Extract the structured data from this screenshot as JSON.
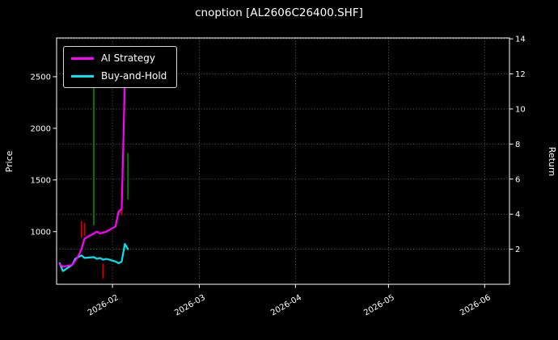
{
  "title": "cnoption [AL2606C26400.SHF]",
  "colors": {
    "background": "#000000",
    "text": "#ffffff",
    "spine": "#ffffff",
    "grid": "#ffffff"
  },
  "chart_data": {
    "type": "line",
    "title": "cnoption [AL2606C26400.SHF]",
    "background": "black",
    "grid": true,
    "legend_position": "upper left",
    "xlabel": "",
    "ylabel_left": "Price",
    "ylabel_right": "Return",
    "x_range": [
      "2026-01-14",
      "2026-06-09"
    ],
    "left_ylim": [
      490,
      2875
    ],
    "right_ylim": [
      0,
      14.05
    ],
    "left_ticks": [
      1000,
      1500,
      2000,
      2500
    ],
    "right_ticks": [
      2,
      4,
      6,
      8,
      10,
      12,
      14
    ],
    "x_tick_dates": [
      "2026-02-01",
      "2026-03-01",
      "2026-04-01",
      "2026-05-01",
      "2026-06-01"
    ],
    "x_tick_labels": [
      "2026-02",
      "2026-03",
      "2026-04",
      "2026-05",
      "2026-06"
    ],
    "x": [
      "2026-01-15",
      "2026-01-16",
      "2026-01-19",
      "2026-01-20",
      "2026-01-21",
      "2026-01-22",
      "2026-01-23",
      "2026-01-26",
      "2026-01-27",
      "2026-01-28",
      "2026-01-29",
      "2026-01-30",
      "2026-02-02",
      "2026-02-03",
      "2026-02-04",
      "2026-02-05",
      "2026-02-06"
    ],
    "series": [
      {
        "name": "AI Strategy",
        "axis": "right",
        "color": "#ff00ff",
        "values": [
          1.15,
          1.0,
          1.1,
          1.35,
          1.6,
          2.0,
          2.6,
          2.9,
          3.0,
          2.9,
          2.95,
          3.0,
          3.3,
          4.15,
          4.3,
          11.7,
          11.4
        ]
      },
      {
        "name": "Buy-and-Hold",
        "axis": "right",
        "color": "#00e5ee",
        "values": [
          1.2,
          0.75,
          1.1,
          1.45,
          1.55,
          1.65,
          1.5,
          1.55,
          1.45,
          1.5,
          1.4,
          1.45,
          1.3,
          1.2,
          1.3,
          2.3,
          2.0
        ]
      }
    ],
    "candlesticks": {
      "axis": "left",
      "up_color": "#008000",
      "down_color": "#d40000",
      "bars": [
        {
          "date": "2026-01-22",
          "low": 940,
          "high": 1100,
          "direction": "down"
        },
        {
          "date": "2026-01-23",
          "low": 960,
          "high": 1085,
          "direction": "down"
        },
        {
          "date": "2026-01-26",
          "low": 1060,
          "high": 2700,
          "direction": "up"
        },
        {
          "date": "2026-01-29",
          "low": 545,
          "high": 690,
          "direction": "down"
        },
        {
          "date": "2026-02-04",
          "low": 1160,
          "high": 1450,
          "direction": "down"
        },
        {
          "date": "2026-02-06",
          "low": 1310,
          "high": 1760,
          "direction": "up"
        }
      ]
    }
  }
}
